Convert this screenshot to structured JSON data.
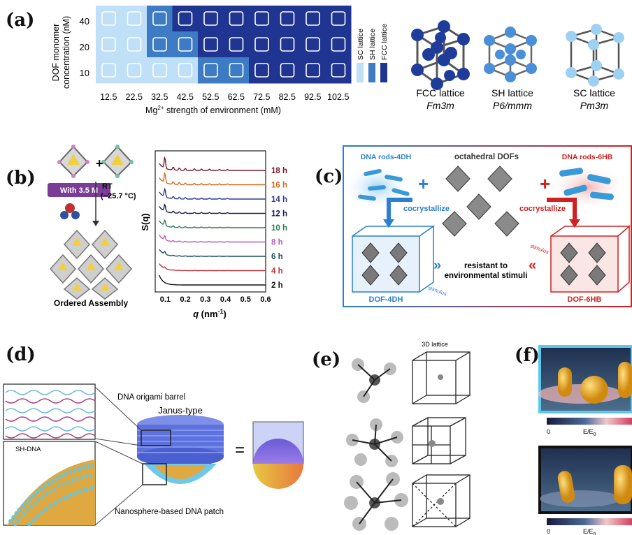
{
  "panels": {
    "a": {
      "label": "(a)",
      "ylabel_line1": "DOF monomer",
      "ylabel_line2": "concentration (nM)",
      "yticks": [
        "40",
        "20",
        "10"
      ],
      "xticks": [
        "12.5",
        "22.5",
        "32.5",
        "42.5",
        "52.5",
        "62.5",
        "72.5",
        "82.5",
        "92.5",
        "102.5"
      ],
      "xlabel_pre": "Mg",
      "xlabel_sup": "2+",
      "xlabel_post": " strength of environment (mM)",
      "legend": [
        "SC lattice",
        "SH lattice",
        "FCC lattice"
      ],
      "lattice_names": [
        "FCC lattice",
        "SH lattice",
        "SC lattice"
      ],
      "space_groups": [
        "Fm3m",
        "P6/mmm",
        "Pm3m"
      ],
      "colors": {
        "sc": "#bfe0f6",
        "sh": "#3d7bc4",
        "fcc": "#1f3591"
      }
    },
    "b": {
      "label": "(b)",
      "condition_pill": "With 3.5 M",
      "rt_line1": "RT",
      "rt_line2": "(~25.7 °C)",
      "caption": "Ordered Assembly",
      "ylabel": "S(q)",
      "xlabel_q": "q",
      "xlabel_unit": " (nm",
      "xlabel_sup": "-1",
      "xlabel_close": ")",
      "xticks": [
        "0.1",
        "0.2",
        "0.3",
        "0.4",
        "0.5",
        "0.6"
      ],
      "times": [
        "18 h",
        "16 h",
        "14 h",
        "12 h",
        "10 h",
        "8 h",
        "6 h",
        "4 h",
        "2 h"
      ],
      "colors": [
        "#7b1a2a",
        "#d2691e",
        "#2b3a8c",
        "#1a1a4d",
        "#2e7d4f",
        "#b85ab8",
        "#1c4d5e",
        "#c0303a",
        "#111111"
      ]
    },
    "c": {
      "label": "(c)",
      "rods_4dh": "DNA rods-4DH",
      "octahedral": "octahedral DOFs",
      "rods_6hb": "DNA rods-6HB",
      "cocryst_left": "cocrystallize",
      "cocryst_right": "cocrystallize",
      "resistant_line1": "resistant to",
      "resistant_line2": "environmental stimuli",
      "dof4dh": "DOF-4DH",
      "dof6hb": "DOF-6HB",
      "stimulus": "stimulus",
      "plus1": "+",
      "plus2": "+"
    },
    "d": {
      "label": "(d)",
      "barrel": "DNA origami barrel",
      "janus": "Janus-type",
      "shdna": "SH-DNA",
      "patch": "Nanosphere-based DNA patch",
      "equals": "="
    },
    "e": {
      "label": "(e)",
      "title": "3D lattice"
    },
    "f": {
      "label": "(f)",
      "cbar_min": "0",
      "cbar_label_pre": "E/E",
      "cbar_label_sub": "0"
    }
  }
}
